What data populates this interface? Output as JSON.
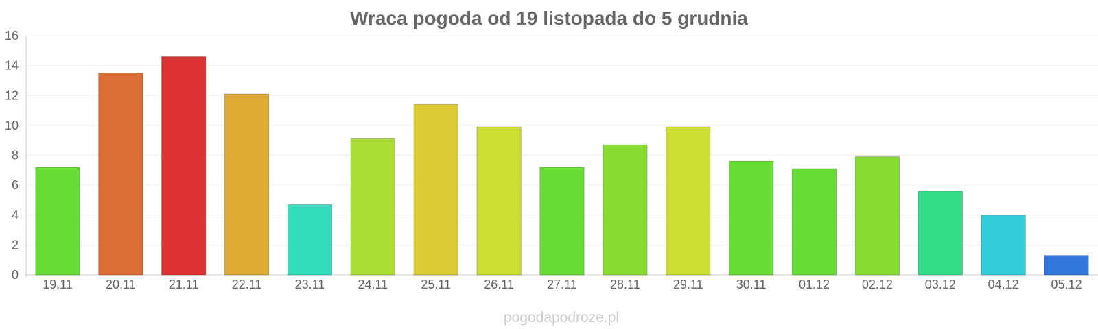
{
  "chart_data": {
    "type": "bar",
    "title": "Wraca pogoda od 19 listopada do 5 grudnia",
    "xlabel": "",
    "ylabel": "",
    "categories": [
      "19.11",
      "20.11",
      "21.11",
      "22.11",
      "23.11",
      "24.11",
      "25.11",
      "26.11",
      "27.11",
      "28.11",
      "29.11",
      "30.11",
      "01.12",
      "02.12",
      "03.12",
      "04.12",
      "05.12"
    ],
    "values": [
      7.2,
      13.5,
      14.6,
      12.1,
      4.7,
      9.1,
      11.4,
      9.9,
      7.2,
      8.7,
      9.9,
      7.6,
      7.1,
      7.9,
      5.6,
      4.0,
      1.3
    ],
    "colors": [
      "#66dd33",
      "#dd6e33",
      "#dd3333",
      "#ddaa33",
      "#33ddbb",
      "#aadd33",
      "#ddca33",
      "#ccdd33",
      "#66dd33",
      "#88dd33",
      "#ccdd33",
      "#66dd33",
      "#66dd33",
      "#88dd33",
      "#33dd88",
      "#33ccdd",
      "#3377dd"
    ],
    "ylim": [
      0,
      16
    ],
    "yticks": [
      0,
      2,
      4,
      6,
      8,
      10,
      12,
      14,
      16
    ],
    "grid": true,
    "legend": "none"
  },
  "watermark": "pogodapodroze.pl"
}
